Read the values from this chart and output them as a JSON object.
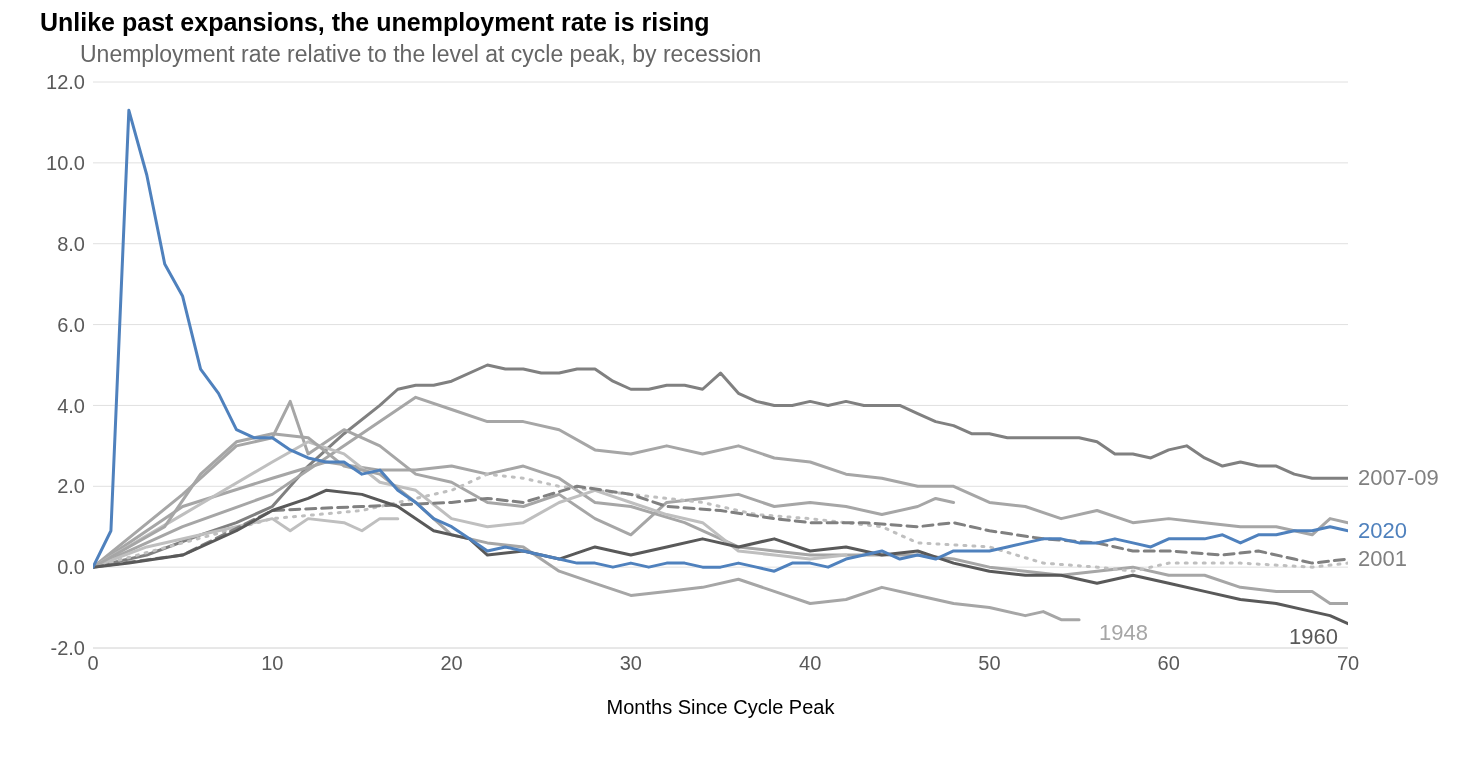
{
  "chart_data": {
    "type": "line",
    "title": "Unlike past expansions, the unemployment rate is rising",
    "subtitle": "Unemployment rate relative to the level at cycle peak, by recession",
    "xlabel": "Months Since Cycle Peak",
    "xlim": [
      0,
      70
    ],
    "xticks": [
      0,
      10,
      20,
      30,
      40,
      50,
      60,
      70
    ],
    "ylim": [
      -2,
      12
    ],
    "yticks": [
      {
        "value": -2,
        "label": "-2.0"
      },
      {
        "value": 0,
        "label": "0.0"
      },
      {
        "value": 2,
        "label": "2.0"
      },
      {
        "value": 4,
        "label": "4.0"
      },
      {
        "value": 6,
        "label": "6.0"
      },
      {
        "value": 8,
        "label": "8.0"
      },
      {
        "value": 10,
        "label": "10.0"
      },
      {
        "value": 12,
        "label": "12.0"
      }
    ],
    "grid": "y",
    "marker": "none",
    "series": [
      {
        "name": "2007-09",
        "color": "#808080",
        "x": [
          0,
          3,
          6,
          8,
          10,
          12,
          14,
          16,
          17,
          18,
          19,
          20,
          22,
          23,
          24,
          25,
          26,
          27,
          28,
          29,
          30,
          31,
          32,
          33,
          34,
          35,
          36,
          37,
          38,
          39,
          40,
          41,
          42,
          43,
          45,
          46,
          47,
          48,
          49,
          50,
          51,
          55,
          56,
          57,
          58,
          59,
          60,
          61,
          62,
          63,
          64,
          65,
          66,
          67,
          68,
          70
        ],
        "values": [
          0,
          0.3,
          0.8,
          1.1,
          1.5,
          2.5,
          3.3,
          4.0,
          4.4,
          4.5,
          4.5,
          4.6,
          5.0,
          4.9,
          4.9,
          4.8,
          4.8,
          4.9,
          4.9,
          4.6,
          4.4,
          4.4,
          4.5,
          4.5,
          4.4,
          4.8,
          4.3,
          4.1,
          4.0,
          4.0,
          4.1,
          4.0,
          4.1,
          4.0,
          4.0,
          3.8,
          3.6,
          3.5,
          3.3,
          3.3,
          3.2,
          3.2,
          3.1,
          2.8,
          2.8,
          2.7,
          2.9,
          3.0,
          2.7,
          2.5,
          2.6,
          2.5,
          2.5,
          2.3,
          2.2,
          2.2
        ]
      },
      {
        "color": "#a6a6a6",
        "x": [
          0,
          5,
          10,
          14,
          16,
          18,
          20,
          22,
          24,
          26,
          28,
          30,
          32,
          34,
          36,
          38,
          40,
          42,
          44,
          46,
          48,
          50,
          52,
          54,
          56,
          58,
          60,
          62,
          64,
          66,
          68,
          69,
          70
        ],
        "values": [
          0,
          1.0,
          1.8,
          3.0,
          3.6,
          4.2,
          3.9,
          3.6,
          3.6,
          3.4,
          2.9,
          2.8,
          3.0,
          2.8,
          3.0,
          2.7,
          2.6,
          2.3,
          2.2,
          2.0,
          2.0,
          1.6,
          1.5,
          1.2,
          1.4,
          1.1,
          1.2,
          1.1,
          1.0,
          1.0,
          0.8,
          1.2,
          1.1
        ]
      },
      {
        "color": "#a6a6a6",
        "x": [
          0,
          5,
          10,
          13,
          16,
          18,
          20,
          22,
          24,
          26,
          28,
          30,
          33,
          36,
          38,
          40,
          43,
          46,
          48,
          50,
          52,
          54,
          56,
          58,
          60,
          62,
          64,
          66,
          68,
          69,
          70
        ],
        "values": [
          0,
          1.5,
          2.2,
          2.6,
          2.4,
          2.4,
          2.5,
          2.3,
          2.5,
          2.2,
          1.6,
          1.5,
          1.1,
          0.5,
          0.4,
          0.3,
          0.3,
          0.3,
          0.2,
          0.0,
          -0.1,
          -0.2,
          -0.1,
          0.0,
          -0.2,
          -0.2,
          -0.5,
          -0.6,
          -0.6,
          -0.9,
          -0.9
        ]
      },
      {
        "color": "#a6a6a6",
        "x": [
          0,
          5,
          8,
          10,
          11,
          12,
          14,
          16,
          18,
          20,
          22,
          24,
          26,
          28,
          30,
          31,
          32,
          34,
          36,
          38,
          40,
          42,
          44,
          46,
          47,
          48
        ],
        "values": [
          0,
          1.8,
          3.0,
          3.2,
          4.1,
          2.8,
          3.4,
          3.0,
          2.3,
          2.1,
          1.6,
          1.5,
          1.8,
          1.2,
          0.8,
          1.2,
          1.6,
          1.7,
          1.8,
          1.5,
          1.6,
          1.5,
          1.3,
          1.5,
          1.7,
          1.6
        ]
      },
      {
        "color": "#bfbfbf",
        "x": [
          0,
          5,
          10,
          12,
          14,
          16,
          18,
          20,
          22,
          24,
          26,
          28,
          30,
          32,
          34,
          36,
          38,
          40,
          42
        ],
        "values": [
          0,
          1.3,
          2.6,
          3.1,
          2.8,
          2.1,
          1.9,
          1.2,
          1.0,
          1.1,
          1.6,
          1.9,
          1.6,
          1.3,
          1.1,
          0.4,
          0.3,
          0.2,
          0.3
        ]
      },
      {
        "color": "#bfbfbf",
        "x": [
          0,
          3,
          6,
          8,
          10,
          11,
          12,
          14,
          15,
          16,
          17
        ],
        "values": [
          0,
          0.5,
          0.8,
          1.0,
          1.2,
          0.9,
          1.2,
          1.1,
          0.9,
          1.2,
          1.2
        ]
      },
      {
        "color": "#bfbfbf",
        "line_style": "dotted",
        "x": [
          0,
          5,
          10,
          15,
          20,
          22,
          24,
          26,
          30,
          34,
          37,
          40,
          44,
          46,
          50,
          53,
          56,
          58,
          60,
          64,
          68,
          70
        ],
        "values": [
          0,
          0.6,
          1.2,
          1.4,
          1.9,
          2.3,
          2.2,
          2.0,
          1.8,
          1.6,
          1.3,
          1.2,
          1.0,
          0.6,
          0.5,
          0.1,
          0.0,
          -0.1,
          0.1,
          0.1,
          0.0,
          0.1
        ]
      },
      {
        "name": "2001",
        "color": "#808080",
        "line_style": "dashed",
        "x": [
          0,
          5,
          10,
          15,
          20,
          22,
          24,
          27,
          30,
          32,
          35,
          38,
          40,
          43,
          46,
          48,
          50,
          53,
          56,
          58,
          60,
          63,
          65,
          67,
          68,
          70
        ],
        "values": [
          0,
          0.3,
          1.4,
          1.5,
          1.6,
          1.7,
          1.6,
          2.0,
          1.8,
          1.5,
          1.4,
          1.2,
          1.1,
          1.1,
          1.0,
          1.1,
          0.9,
          0.7,
          0.6,
          0.4,
          0.4,
          0.3,
          0.4,
          0.2,
          0.1,
          0.2
        ]
      },
      {
        "name": "1948",
        "color": "#a6a6a6",
        "x": [
          0,
          4,
          6,
          8,
          10,
          12,
          14,
          16,
          18,
          20,
          22,
          24,
          26,
          28,
          30,
          32,
          34,
          36,
          38,
          40,
          42,
          44,
          46,
          48,
          50,
          52,
          53,
          54,
          55
        ],
        "values": [
          0,
          1.0,
          2.3,
          3.1,
          3.3,
          3.2,
          2.5,
          2.3,
          1.6,
          0.8,
          0.6,
          0.5,
          -0.1,
          -0.4,
          -0.7,
          -0.6,
          -0.5,
          -0.3,
          -0.6,
          -0.9,
          -0.8,
          -0.5,
          -0.7,
          -0.9,
          -1.0,
          -1.2,
          -1.1,
          -1.3,
          -1.3
        ]
      },
      {
        "name": "1960",
        "color": "#595959",
        "x": [
          0,
          2,
          5,
          8,
          10,
          12,
          13,
          15,
          17,
          19,
          21,
          22,
          24,
          26,
          28,
          30,
          32,
          34,
          36,
          38,
          40,
          42,
          44,
          46,
          48,
          50,
          52,
          54,
          56,
          58,
          60,
          62,
          64,
          66,
          68,
          69,
          70
        ],
        "values": [
          0,
          0.1,
          0.3,
          0.9,
          1.4,
          1.7,
          1.9,
          1.8,
          1.5,
          0.9,
          0.7,
          0.3,
          0.4,
          0.2,
          0.5,
          0.3,
          0.5,
          0.7,
          0.5,
          0.7,
          0.4,
          0.5,
          0.3,
          0.4,
          0.1,
          -0.1,
          -0.2,
          -0.2,
          -0.4,
          -0.2,
          -0.4,
          -0.6,
          -0.8,
          -0.9,
          -1.1,
          -1.2,
          -1.4
        ]
      },
      {
        "name": "2020",
        "color": "#4f81bd",
        "x": [
          0,
          1,
          2,
          3,
          4,
          5,
          6,
          7,
          8,
          9,
          10,
          11,
          12,
          13,
          14,
          15,
          16,
          17,
          18,
          19,
          20,
          21,
          22,
          23,
          24,
          25,
          26,
          27,
          28,
          29,
          30,
          31,
          32,
          33,
          34,
          35,
          36,
          37,
          38,
          39,
          40,
          41,
          42,
          43,
          44,
          45,
          46,
          47,
          48,
          49,
          50,
          51,
          52,
          53,
          54,
          55,
          56,
          57,
          58,
          59,
          60,
          61,
          62,
          63,
          64,
          65,
          66,
          67,
          68,
          69,
          70
        ],
        "values": [
          0,
          0.9,
          11.3,
          9.7,
          7.5,
          6.7,
          4.9,
          4.3,
          3.4,
          3.2,
          3.2,
          2.9,
          2.7,
          2.6,
          2.6,
          2.3,
          2.4,
          1.9,
          1.6,
          1.2,
          1.0,
          0.7,
          0.4,
          0.5,
          0.4,
          0.3,
          0.2,
          0.1,
          0.1,
          0.0,
          0.1,
          0.0,
          0.1,
          0.1,
          0.0,
          0.0,
          0.1,
          0.0,
          -0.1,
          0.1,
          0.1,
          0.0,
          0.2,
          0.3,
          0.4,
          0.2,
          0.3,
          0.2,
          0.4,
          0.4,
          0.4,
          0.5,
          0.6,
          0.7,
          0.7,
          0.6,
          0.6,
          0.7,
          0.6,
          0.5,
          0.7,
          0.7,
          0.7,
          0.8,
          0.6,
          0.8,
          0.8,
          0.9,
          0.9,
          1.0,
          0.9
        ]
      }
    ]
  }
}
